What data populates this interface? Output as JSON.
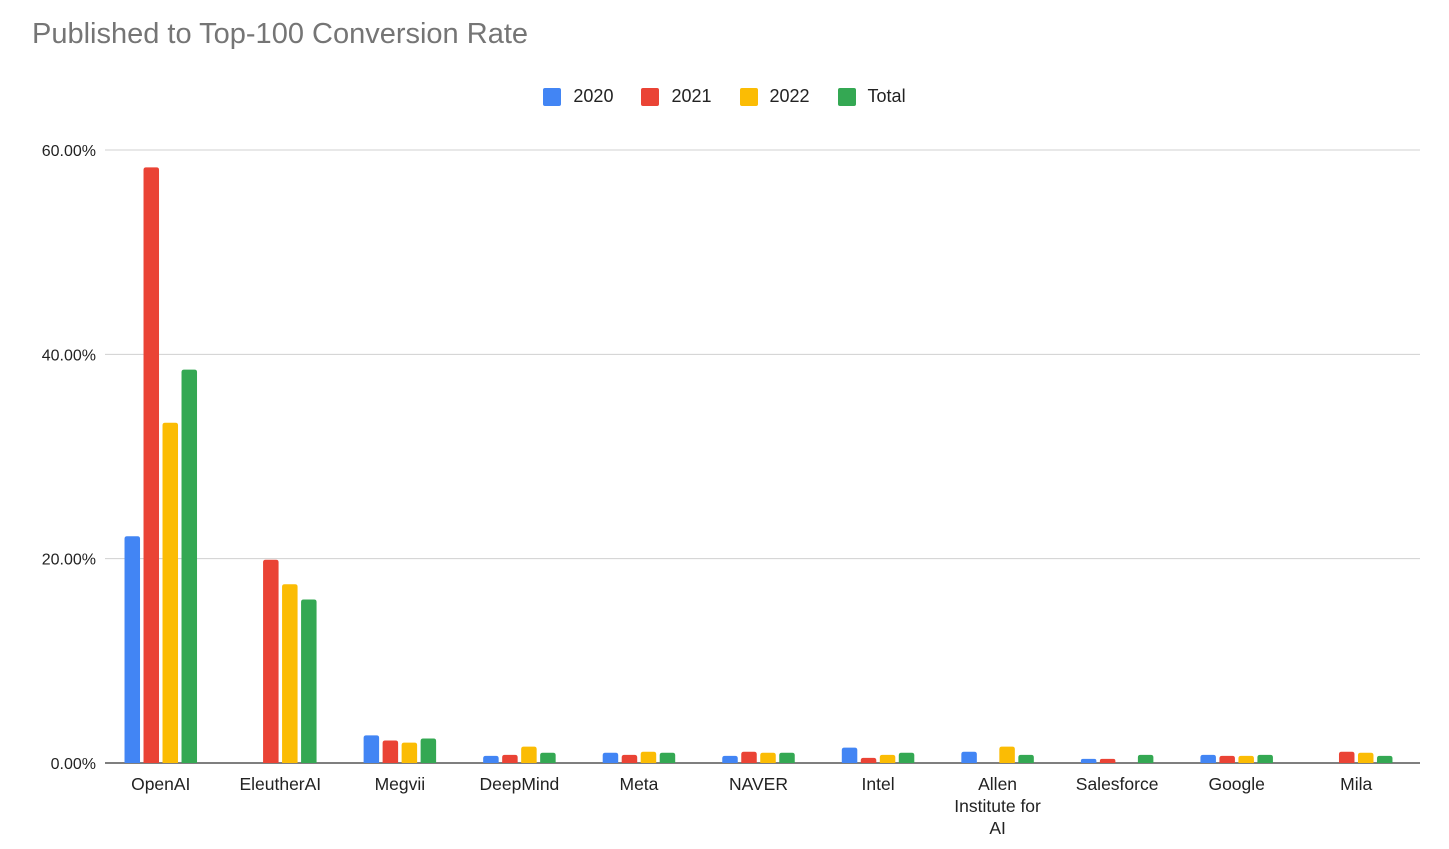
{
  "chart_data": {
    "type": "bar",
    "title": "Published to Top-100 Conversion Rate",
    "xlabel": "",
    "ylabel": "",
    "ylim": [
      0,
      60
    ],
    "y_ticks": [
      {
        "value": 0,
        "label": "0.00%"
      },
      {
        "value": 20,
        "label": "20.00%"
      },
      {
        "value": 40,
        "label": "40.00%"
      },
      {
        "value": 60,
        "label": "60.00%"
      }
    ],
    "grid": true,
    "legend_position": "top",
    "categories": [
      "OpenAI",
      "EleutherAI",
      "Megvii",
      "DeepMind",
      "Meta",
      "NAVER",
      "Intel",
      "Allen Institute for AI",
      "Salesforce",
      "Google",
      "Mila"
    ],
    "category_label_lines": [
      [
        "OpenAI"
      ],
      [
        "EleutherAI"
      ],
      [
        "Megvii"
      ],
      [
        "DeepMind"
      ],
      [
        "Meta"
      ],
      [
        "NAVER"
      ],
      [
        "Intel"
      ],
      [
        "Allen",
        "Institute for",
        "AI"
      ],
      [
        "Salesforce"
      ],
      [
        "Google"
      ],
      [
        "Mila"
      ]
    ],
    "series": [
      {
        "name": "2020",
        "color": "#4285F4",
        "values": [
          22.2,
          null,
          2.7,
          0.7,
          1.0,
          0.7,
          1.5,
          1.1,
          0.4,
          0.8,
          null
        ]
      },
      {
        "name": "2021",
        "color": "#EA4335",
        "values": [
          58.3,
          19.9,
          2.2,
          0.8,
          0.8,
          1.1,
          0.5,
          null,
          0.4,
          0.7,
          1.1
        ]
      },
      {
        "name": "2022",
        "color": "#FBBC04",
        "values": [
          33.3,
          17.5,
          2.0,
          1.6,
          1.1,
          1.0,
          0.8,
          1.6,
          null,
          0.7,
          1.0
        ]
      },
      {
        "name": "Total",
        "color": "#34A853",
        "values": [
          38.5,
          16.0,
          2.4,
          1.0,
          1.0,
          1.0,
          1.0,
          0.8,
          0.8,
          0.8,
          0.7
        ]
      }
    ]
  }
}
